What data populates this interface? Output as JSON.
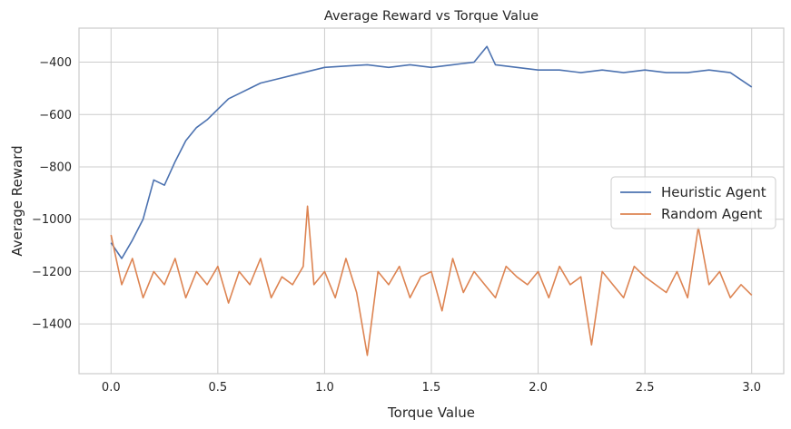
{
  "chart_data": {
    "type": "line",
    "title": "Average Reward vs Torque Value",
    "xlabel": "Torque Value",
    "ylabel": "Average Reward",
    "xlim": [
      -0.15,
      3.15
    ],
    "ylim": [
      -1590,
      -270
    ],
    "xticks": [
      0.0,
      0.5,
      1.0,
      1.5,
      2.0,
      2.5,
      3.0
    ],
    "xtick_labels": [
      "0.0",
      "0.5",
      "1.0",
      "1.5",
      "2.0",
      "2.5",
      "3.0"
    ],
    "yticks": [
      -1400,
      -1200,
      -1000,
      -800,
      -600,
      -400
    ],
    "ytick_labels": [
      "−1400",
      "−1200",
      "−1000",
      "−800",
      "−600",
      "−400"
    ],
    "grid": true,
    "legend_position": "center-right",
    "series": [
      {
        "name": "Heuristic Agent",
        "color": "#4c72b0",
        "x": [
          0.0,
          0.05,
          0.1,
          0.15,
          0.2,
          0.25,
          0.3,
          0.35,
          0.4,
          0.45,
          0.5,
          0.55,
          0.6,
          0.65,
          0.7,
          0.75,
          0.8,
          0.85,
          0.9,
          0.95,
          1.0,
          1.1,
          1.2,
          1.3,
          1.4,
          1.5,
          1.6,
          1.7,
          1.76,
          1.8,
          1.9,
          2.0,
          2.1,
          2.2,
          2.3,
          2.4,
          2.5,
          2.6,
          2.7,
          2.8,
          2.9,
          3.0
        ],
        "y": [
          -1090,
          -1150,
          -1080,
          -1000,
          -850,
          -870,
          -780,
          -700,
          -650,
          -620,
          -580,
          -540,
          -520,
          -500,
          -480,
          -470,
          -460,
          -450,
          -440,
          -430,
          -420,
          -415,
          -410,
          -420,
          -410,
          -420,
          -410,
          -400,
          -340,
          -410,
          -420,
          -430,
          -430,
          -440,
          -430,
          -440,
          -430,
          -440,
          -440,
          -430,
          -440,
          -495
        ]
      },
      {
        "name": "Random Agent",
        "color": "#dd8452",
        "x": [
          0.0,
          0.05,
          0.1,
          0.15,
          0.2,
          0.25,
          0.3,
          0.35,
          0.4,
          0.45,
          0.5,
          0.55,
          0.6,
          0.65,
          0.7,
          0.75,
          0.8,
          0.85,
          0.9,
          0.92,
          0.95,
          1.0,
          1.05,
          1.1,
          1.15,
          1.2,
          1.25,
          1.3,
          1.35,
          1.4,
          1.45,
          1.5,
          1.55,
          1.6,
          1.65,
          1.7,
          1.75,
          1.8,
          1.85,
          1.9,
          1.95,
          2.0,
          2.05,
          2.1,
          2.15,
          2.2,
          2.25,
          2.3,
          2.35,
          2.4,
          2.45,
          2.5,
          2.55,
          2.6,
          2.65,
          2.7,
          2.75,
          2.8,
          2.85,
          2.9,
          2.95,
          3.0
        ],
        "y": [
          -1060,
          -1250,
          -1150,
          -1300,
          -1200,
          -1250,
          -1150,
          -1300,
          -1200,
          -1250,
          -1180,
          -1320,
          -1200,
          -1250,
          -1150,
          -1300,
          -1220,
          -1250,
          -1180,
          -950,
          -1250,
          -1200,
          -1300,
          -1150,
          -1280,
          -1520,
          -1200,
          -1250,
          -1180,
          -1300,
          -1220,
          -1200,
          -1350,
          -1150,
          -1280,
          -1200,
          -1250,
          -1300,
          -1180,
          -1220,
          -1250,
          -1200,
          -1300,
          -1180,
          -1250,
          -1220,
          -1480,
          -1200,
          -1250,
          -1300,
          -1180,
          -1220,
          -1250,
          -1280,
          -1200,
          -1300,
          -1030,
          -1250,
          -1200,
          -1300,
          -1250,
          -1290
        ]
      }
    ]
  }
}
